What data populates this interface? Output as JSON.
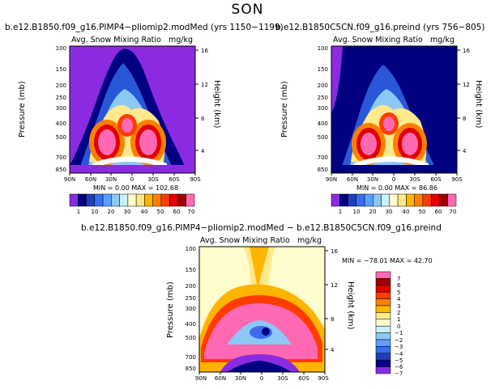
{
  "season": "SON",
  "panels": [
    {
      "id": "p1",
      "title": "b.e12.B1850.f09_g16.PIMP4−pliomip2.modMed (yrs 1150−1199)",
      "left_label": "Avg. Snow Mixing Ratio",
      "right_label": "mg/kg",
      "stats": "MIN =   0.00   MAX = 102.68",
      "y_title": "Pressure (mb)",
      "y2_title": "Height (km)",
      "p_ticks": [
        "100",
        "150",
        "200",
        "250",
        "300",
        "400",
        "500",
        "700",
        "850"
      ],
      "h_ticks": [
        "16",
        "12",
        "8",
        "4"
      ],
      "x_ticks": [
        "90N",
        "60N",
        "30N",
        "0",
        "30S",
        "60S",
        "90S"
      ]
    },
    {
      "id": "p2",
      "title": "b.e12.B1850C5CN.f09_g16.preind (yrs 756−805)",
      "left_label": "Avg. Snow Mixing Ratio",
      "right_label": "mg/kg",
      "stats": "MIN =   0.00   MAX =  86.86",
      "y_title": "Pressure (mb)",
      "y2_title": "Height (km)",
      "p_ticks": [
        "100",
        "150",
        "200",
        "250",
        "300",
        "400",
        "500",
        "700",
        "850"
      ],
      "h_ticks": [
        "16",
        "12",
        "8",
        "4"
      ],
      "x_ticks": [
        "90N",
        "60N",
        "30N",
        "0",
        "30S",
        "60S",
        "90S"
      ]
    },
    {
      "id": "p3",
      "title": "b.e12.B1850.f09_g16.PIMP4−pliomip2.modMed − b.e12.B1850C5CN.f09_g16.preind",
      "left_label": "Avg. Snow Mixing Ratio",
      "right_label": "mg/kg",
      "stats": "MIN = −78.01   MAX =  42.70",
      "y_title": "Pressure (mb)",
      "y2_title": "Height (km)",
      "p_ticks": [
        "100",
        "150",
        "200",
        "250",
        "300",
        "400",
        "500",
        "700",
        "850"
      ],
      "h_ticks": [
        "16",
        "12",
        "8",
        "4"
      ],
      "x_ticks": [
        "90N",
        "60N",
        "30N",
        "0",
        "30S",
        "60S",
        "90S"
      ]
    }
  ],
  "colorbars": {
    "abs": {
      "labels": [
        "1",
        "10",
        "20",
        "30",
        "40",
        "50",
        "60",
        "70"
      ],
      "colors": [
        "#8a2be2",
        "#000080",
        "#1c3fb8",
        "#3a6cf0",
        "#5aa0ff",
        "#8cc8f5",
        "#c8f0ff",
        "#fffccd",
        "#ffe98a",
        "#ffb400",
        "#ff8000",
        "#ff3c00",
        "#e00000",
        "#a00000",
        "#ff69b4"
      ]
    },
    "diff": {
      "labels": [
        "7",
        "6",
        "5",
        "4",
        "3",
        "2",
        "1",
        "0",
        "−1",
        "−2",
        "−3",
        "−4",
        "−5",
        "−6",
        "−7"
      ],
      "colors": [
        "#ff69b4",
        "#a00000",
        "#e00000",
        "#ff3c00",
        "#ff8000",
        "#ffb400",
        "#ffe98a",
        "#fffccd",
        "#c8f0ff",
        "#8cc8f5",
        "#5aa0ff",
        "#3a6cf0",
        "#1c3fb8",
        "#000080",
        "#8a2be2"
      ]
    }
  },
  "chart_data": [
    {
      "type": "heatmap",
      "title": "b.e12.B1850.f09_g16.PIMP4−pliomip2.modMed (yrs 1150−1199)",
      "variable": "Avg. Snow Mixing Ratio",
      "units": "mg/kg",
      "xlabel": "",
      "ylabel": "Pressure (mb)",
      "y2label": "Height (km)",
      "x_ticks": [
        "90N",
        "60N",
        "30N",
        "0",
        "30S",
        "60S",
        "90S"
      ],
      "y_ticks": [
        100,
        150,
        200,
        250,
        300,
        400,
        500,
        700,
        850
      ],
      "y_range_mb": [
        100,
        900
      ],
      "min": 0.0,
      "max": 102.68,
      "contour_levels": [
        1,
        5,
        10,
        15,
        20,
        25,
        30,
        35,
        40,
        45,
        50,
        55,
        60,
        65,
        70
      ]
    },
    {
      "type": "heatmap",
      "title": "b.e12.B1850C5CN.f09_g16.preind (yrs 756−805)",
      "variable": "Avg. Snow Mixing Ratio",
      "units": "mg/kg",
      "xlabel": "",
      "ylabel": "Pressure (mb)",
      "y2label": "Height (km)",
      "x_ticks": [
        "90N",
        "60N",
        "30N",
        "0",
        "30S",
        "60S",
        "90S"
      ],
      "y_ticks": [
        100,
        150,
        200,
        250,
        300,
        400,
        500,
        700,
        850
      ],
      "y_range_mb": [
        100,
        900
      ],
      "min": 0.0,
      "max": 86.86,
      "contour_levels": [
        1,
        5,
        10,
        15,
        20,
        25,
        30,
        35,
        40,
        45,
        50,
        55,
        60,
        65,
        70
      ]
    },
    {
      "type": "heatmap",
      "title": "b.e12.B1850.f09_g16.PIMP4−pliomip2.modMed − b.e12.B1850C5CN.f09_g16.preind",
      "variable": "Avg. Snow Mixing Ratio",
      "units": "mg/kg",
      "xlabel": "",
      "ylabel": "Pressure (mb)",
      "y2label": "Height (km)",
      "x_ticks": [
        "90N",
        "60N",
        "30N",
        "0",
        "30S",
        "60S",
        "90S"
      ],
      "y_ticks": [
        100,
        150,
        200,
        250,
        300,
        400,
        500,
        700,
        850
      ],
      "y_range_mb": [
        100,
        900
      ],
      "min": -78.01,
      "max": 42.7,
      "contour_levels": [
        -7,
        -6,
        -5,
        -4,
        -3,
        -2,
        -1,
        0,
        1,
        2,
        3,
        4,
        5,
        6,
        7
      ]
    }
  ]
}
